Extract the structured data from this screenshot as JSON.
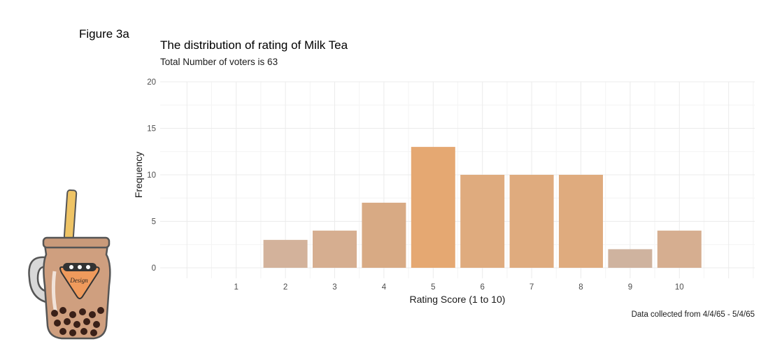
{
  "figure_label": "Figure 3a",
  "chart_data": {
    "type": "bar",
    "title": "The distribution of rating of Milk Tea",
    "subtitle": "Total Number of voters is 63",
    "xlabel": "Rating Score (1 to 10)",
    "ylabel": "Frequency",
    "caption": "Data collected from 4/4/65 - 5/4/65",
    "categories": [
      "1",
      "2",
      "3",
      "4",
      "5",
      "6",
      "7",
      "8",
      "9",
      "10"
    ],
    "values": [
      0,
      3,
      4,
      7,
      13,
      10,
      10,
      10,
      2,
      4
    ],
    "ylim": [
      0,
      20
    ],
    "y_ticks": [
      0,
      5,
      10,
      15,
      20
    ],
    "grid": true,
    "bar_colors": [
      "#d3b29b",
      "#d3b29b",
      "#d6ae90",
      "#d8aa84",
      "#e5a872",
      "#dfab7e",
      "#dfab7e",
      "#dfab7e",
      "#cfb39f",
      "#d6ae90"
    ],
    "grid_major_color": "#ebebeb",
    "grid_minor_color": "#f4f4f4"
  },
  "mascot": {
    "label": "Design",
    "straw_color": "#efc465",
    "tea_color": "#cf9f7f",
    "badge_color": "#ef9a5c"
  }
}
